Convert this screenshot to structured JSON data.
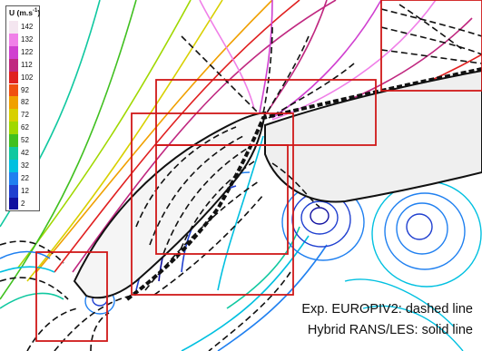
{
  "chart_data": {
    "type": "contour",
    "title": "",
    "colorbar": {
      "label": "U (m.s",
      "exponent": "-1",
      "ticks": [
        142,
        132,
        122,
        112,
        102,
        92,
        82,
        72,
        62,
        52,
        42,
        32,
        22,
        12,
        2
      ],
      "colors": [
        "#f4e6f0",
        "#f080e8",
        "#d040d0",
        "#c02880",
        "#e02020",
        "#f05010",
        "#f0a000",
        "#d8d000",
        "#a0d800",
        "#40c020",
        "#10c8a0",
        "#00c0e0",
        "#2080f0",
        "#2040d0",
        "#1010a0"
      ]
    },
    "legend": [
      {
        "series": "Exp. EUROPIV2",
        "style": "dashed line"
      },
      {
        "series": "Hybrid RANS/LES",
        "style": "solid line"
      }
    ]
  },
  "captions": {
    "line1": "Exp. EUROPIV2: dashed line",
    "line2": "Hybrid RANS/LES: solid line"
  }
}
